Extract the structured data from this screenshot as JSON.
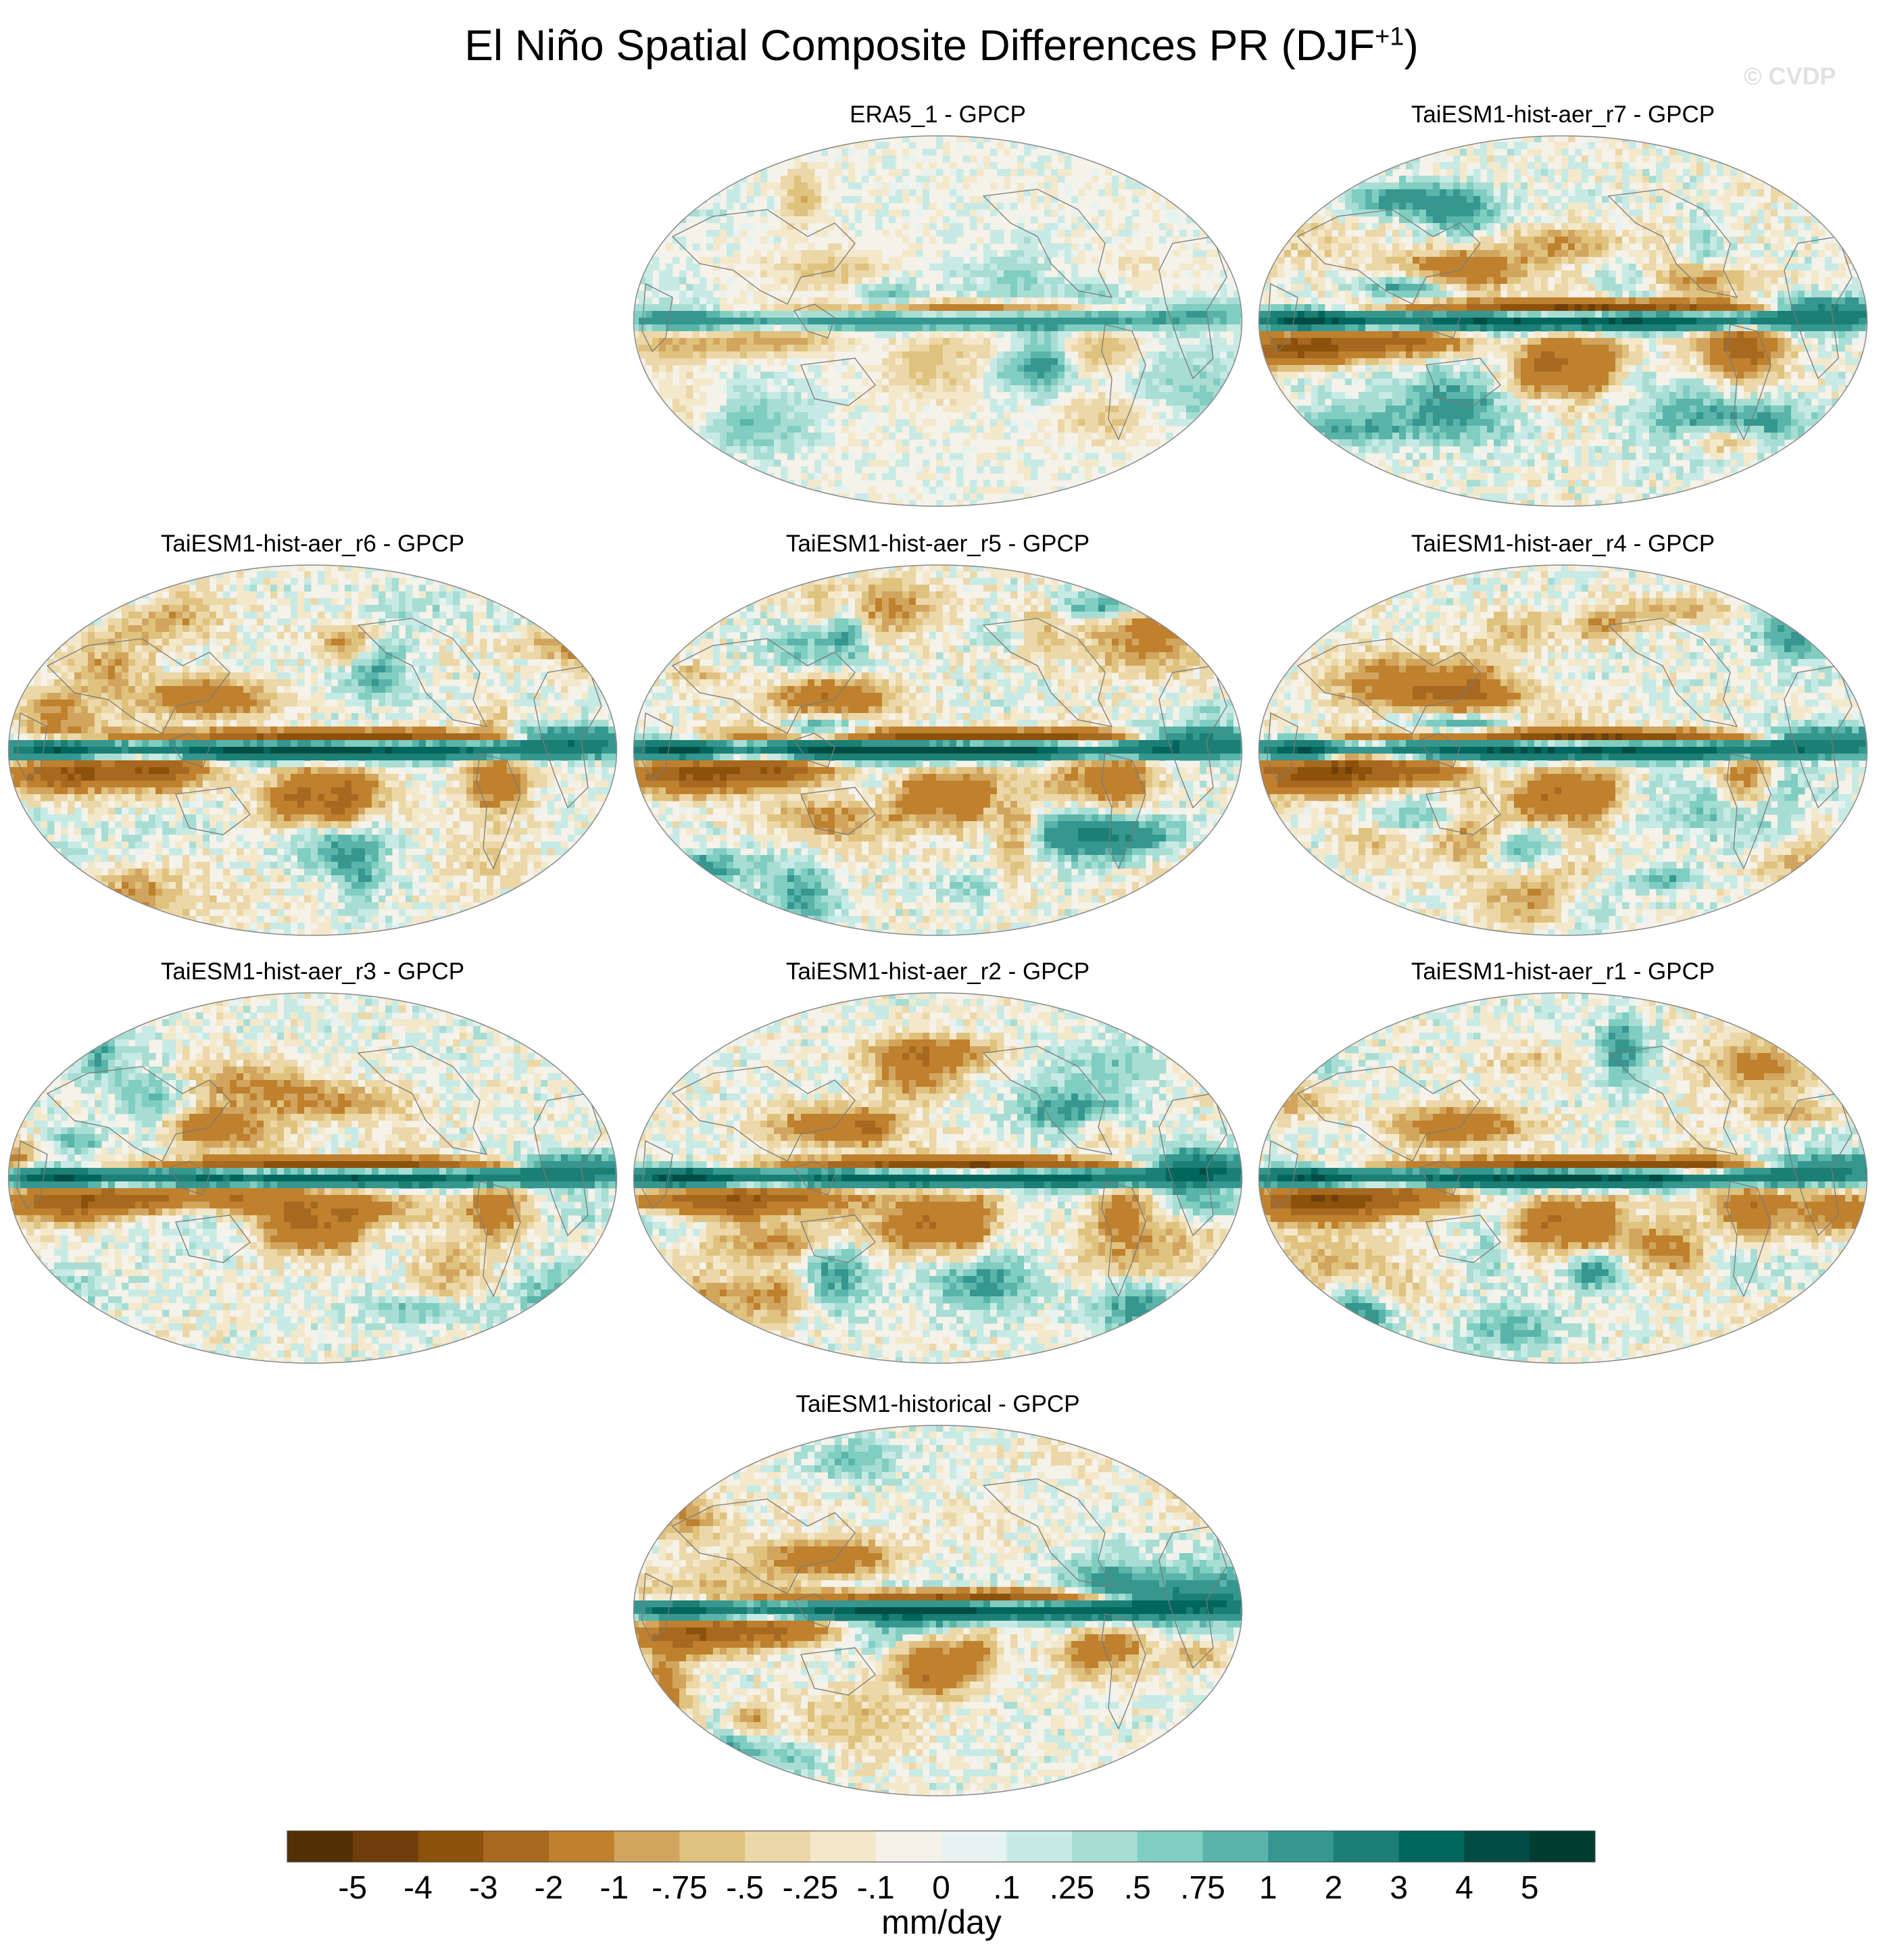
{
  "figure": {
    "title_main": "El Niño Spatial Composite Differences PR (DJF",
    "title_sup": "+1",
    "title_close": ")",
    "watermark": "© CVDP"
  },
  "chart_data": {
    "type": "heatmap",
    "projection": "Robinson (Pacific-centered)",
    "variable": "PR",
    "season": "DJF+1",
    "units": "mm/day",
    "panels": [
      {
        "title": "ERA5_1 - GPCP",
        "equatorial_band_amp": 0.35,
        "seed": 11
      },
      {
        "title": "TaiESM1-hist-aer_r7 - GPCP",
        "equatorial_band_amp": 1.0,
        "seed": 7
      },
      {
        "title": "TaiESM1-hist-aer_r6 - GPCP",
        "equatorial_band_amp": 1.0,
        "seed": 6
      },
      {
        "title": "TaiESM1-hist-aer_r5 - GPCP",
        "equatorial_band_amp": 1.05,
        "seed": 5
      },
      {
        "title": "TaiESM1-hist-aer_r4 - GPCP",
        "equatorial_band_amp": 1.0,
        "seed": 4
      },
      {
        "title": "TaiESM1-hist-aer_r3 - GPCP",
        "equatorial_band_amp": 0.95,
        "seed": 3
      },
      {
        "title": "TaiESM1-hist-aer_r2 - GPCP",
        "equatorial_band_amp": 0.95,
        "seed": 2
      },
      {
        "title": "TaiESM1-hist-aer_r1 - GPCP",
        "equatorial_band_amp": 1.0,
        "seed": 1
      },
      {
        "title": "TaiESM1-historical - GPCP",
        "equatorial_band_amp": 0.9,
        "seed": 9
      }
    ],
    "colorbar": {
      "levels": [
        "-5",
        "-4",
        "-3",
        "-2",
        "-1",
        "-.75",
        "-.5",
        "-.25",
        "-.1",
        "0",
        ".1",
        ".25",
        ".5",
        ".75",
        "1",
        "2",
        "3",
        "4",
        "5"
      ],
      "colors": [
        "#543005",
        "#6f3e0a",
        "#8c510a",
        "#a76920",
        "#bf812d",
        "#d2a55f",
        "#dfc27d",
        "#ecd7a8",
        "#f4e8cb",
        "#f5f2ea",
        "#e6f3f1",
        "#c7eae5",
        "#a8ddd4",
        "#80cdc1",
        "#5ab4a9",
        "#35978f",
        "#1b7f75",
        "#01665e",
        "#014c43",
        "#003c30"
      ],
      "label": "mm/day"
    }
  }
}
